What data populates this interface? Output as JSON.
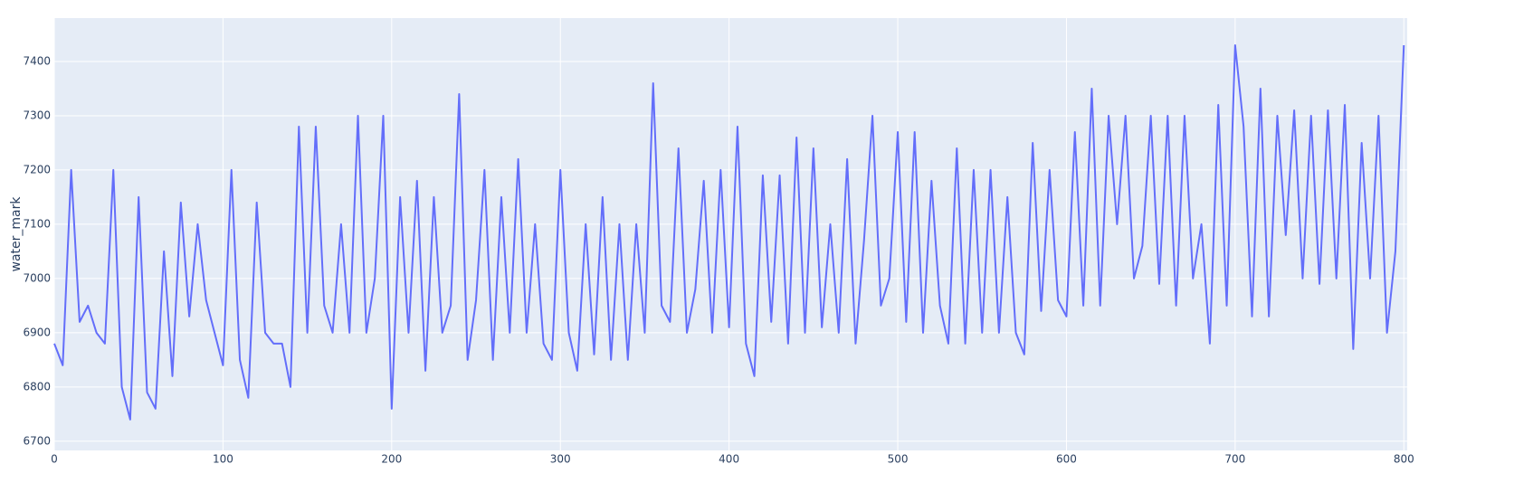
{
  "chart_data": {
    "type": "line",
    "y_label": "water_mark",
    "x": [
      0,
      5,
      10,
      15,
      20,
      25,
      30,
      35,
      40,
      45,
      50,
      55,
      60,
      65,
      70,
      75,
      80,
      85,
      90,
      95,
      100,
      105,
      110,
      115,
      120,
      125,
      130,
      135,
      140,
      145,
      150,
      155,
      160,
      165,
      170,
      175,
      180,
      185,
      190,
      195,
      200,
      205,
      210,
      215,
      220,
      225,
      230,
      235,
      240,
      245,
      250,
      255,
      260,
      265,
      270,
      275,
      280,
      285,
      290,
      295,
      300,
      305,
      310,
      315,
      320,
      325,
      330,
      335,
      340,
      345,
      350,
      355,
      360,
      365,
      370,
      375,
      380,
      385,
      390,
      395,
      400,
      405,
      410,
      415,
      420,
      425,
      430,
      435,
      440,
      445,
      450,
      455,
      460,
      465,
      470,
      475,
      480,
      485,
      490,
      495,
      500,
      505,
      510,
      515,
      520,
      525,
      530,
      535,
      540,
      545,
      550,
      555,
      560,
      565,
      570,
      575,
      580,
      585,
      590,
      595,
      600,
      605,
      610,
      615,
      620,
      625,
      630,
      635,
      640,
      645,
      650,
      655,
      660,
      665,
      670,
      675,
      680,
      685,
      690,
      695,
      700,
      705,
      710,
      715,
      720,
      725,
      730,
      735,
      740,
      745,
      750,
      755,
      760,
      765,
      770,
      775,
      780,
      785,
      790,
      795,
      800
    ],
    "series": [
      {
        "name": "water_mark",
        "color": "#636efa",
        "values": [
          6880,
          6840,
          7200,
          6920,
          6950,
          6900,
          6880,
          7200,
          6800,
          6740,
          7150,
          6790,
          6760,
          7050,
          6820,
          7140,
          6930,
          7100,
          6960,
          6900,
          6840,
          7200,
          6850,
          6780,
          7140,
          6900,
          6880,
          6880,
          6800,
          7280,
          6900,
          7280,
          6950,
          6900,
          7100,
          6900,
          7300,
          6900,
          7000,
          7300,
          6760,
          7150,
          6900,
          7180,
          6830,
          7150,
          6900,
          6950,
          7340,
          6850,
          6960,
          7200,
          6850,
          7150,
          6900,
          7220,
          6900,
          7100,
          6880,
          6850,
          7200,
          6900,
          6830,
          7100,
          6860,
          7150,
          6850,
          7100,
          6850,
          7100,
          6900,
          7360,
          6950,
          6920,
          7240,
          6900,
          6980,
          7180,
          6900,
          7200,
          6910,
          7280,
          6880,
          6820,
          7190,
          6920,
          7190,
          6880,
          7260,
          6900,
          7240,
          6910,
          7100,
          6900,
          7220,
          6880,
          7070,
          7300,
          6950,
          7000,
          7270,
          6920,
          7270,
          6900,
          7180,
          6950,
          6880,
          7240,
          6880,
          7200,
          6900,
          7200,
          6900,
          7150,
          6900,
          6860,
          7250,
          6940,
          7200,
          6960,
          6930,
          7270,
          6950,
          7350,
          6950,
          7300,
          7100,
          7300,
          7000,
          7060,
          7300,
          6990,
          7300,
          6950,
          7300,
          7000,
          7100,
          6880,
          7320,
          6950,
          7430,
          7280,
          6930,
          7350,
          6930,
          7300,
          7080,
          7310,
          7000,
          7300,
          6990,
          7310,
          7000,
          7320,
          6870,
          7250,
          7000,
          7300,
          6900,
          7050,
          7430
        ]
      }
    ],
    "xlim": [
      0,
      802
    ],
    "ylim": [
      6683,
      7480
    ],
    "xticks": [
      0,
      100,
      200,
      300,
      400,
      500,
      600,
      700,
      800
    ],
    "yticks": [
      6700,
      6800,
      6900,
      7000,
      7100,
      7200,
      7300,
      7400
    ],
    "grid": true
  }
}
